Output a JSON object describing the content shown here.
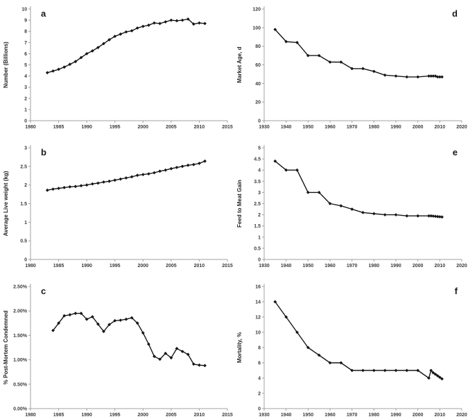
{
  "figure": {
    "background": "#ffffff",
    "series_color": "#161616",
    "axis_color": "#a0a0a0",
    "tick_text_color": "#3c3c3c"
  },
  "chart_data": [
    {
      "type": "line",
      "panel_label": "a",
      "panel_label_side": "left",
      "title": "",
      "xlabel": "",
      "ylabel": "Number (Billions)",
      "legend": null,
      "grid": false,
      "xlim": [
        1980,
        2015
      ],
      "ylim": [
        0,
        10
      ],
      "xticks": [
        1980,
        1985,
        1990,
        1995,
        2000,
        2005,
        2010,
        2015
      ],
      "yticks": [
        0,
        1,
        2,
        3,
        4,
        5,
        6,
        7,
        8,
        9,
        10
      ],
      "ytick_labels": [
        "0",
        "1",
        "2",
        "3",
        "4",
        "5",
        "6",
        "7",
        "8",
        "9",
        "10"
      ],
      "x": [
        1983,
        1984,
        1985,
        1986,
        1987,
        1988,
        1989,
        1990,
        1991,
        1992,
        1993,
        1994,
        1995,
        1996,
        1997,
        1998,
        1999,
        2000,
        2001,
        2002,
        2003,
        2004,
        2005,
        2006,
        2007,
        2008,
        2009,
        2010,
        2011
      ],
      "y": [
        4.3,
        4.45,
        4.6,
        4.8,
        5.05,
        5.3,
        5.65,
        6.0,
        6.25,
        6.55,
        6.9,
        7.25,
        7.55,
        7.75,
        7.95,
        8.05,
        8.3,
        8.45,
        8.55,
        8.75,
        8.7,
        8.85,
        9.0,
        8.95,
        9.0,
        9.1,
        8.65,
        8.75,
        8.7
      ]
    },
    {
      "type": "line",
      "panel_label": "d",
      "panel_label_side": "right",
      "title": "",
      "xlabel": "",
      "ylabel": "Market Age, d",
      "legend": null,
      "grid": false,
      "xlim": [
        1930,
        2020
      ],
      "ylim": [
        0,
        120
      ],
      "xticks": [
        1930,
        1940,
        1950,
        1960,
        1970,
        1980,
        1990,
        2000,
        2010,
        2020
      ],
      "yticks": [
        0,
        20,
        40,
        60,
        80,
        100,
        120
      ],
      "ytick_labels": [
        "0",
        "20",
        "40",
        "60",
        "80",
        "100",
        "120"
      ],
      "x": [
        1935,
        1940,
        1945,
        1950,
        1955,
        1960,
        1965,
        1970,
        1975,
        1980,
        1985,
        1990,
        1995,
        2000,
        2005,
        2006,
        2007,
        2008,
        2009,
        2010,
        2011
      ],
      "y": [
        98,
        85,
        84,
        70,
        70,
        63,
        63,
        56,
        56,
        53,
        49,
        48,
        47,
        47,
        48,
        48,
        48,
        48,
        47,
        47,
        47
      ]
    },
    {
      "type": "line",
      "panel_label": "b",
      "panel_label_side": "left",
      "title": "",
      "xlabel": "",
      "ylabel": "Average Live weight (kg)",
      "legend": null,
      "grid": false,
      "xlim": [
        1980,
        2015
      ],
      "ylim": [
        0,
        3
      ],
      "xticks": [
        1980,
        1985,
        1990,
        1995,
        2000,
        2005,
        2010,
        2015
      ],
      "yticks": [
        0,
        0.5,
        1,
        1.5,
        2,
        2.5,
        3
      ],
      "ytick_labels": [
        "0",
        "0.5",
        "1",
        "1.5",
        "2",
        "2.5",
        "3"
      ],
      "x": [
        1983,
        1984,
        1985,
        1986,
        1987,
        1988,
        1989,
        1990,
        1991,
        1992,
        1993,
        1994,
        1995,
        1996,
        1997,
        1998,
        1999,
        2000,
        2001,
        2002,
        2003,
        2004,
        2005,
        2006,
        2007,
        2008,
        2009,
        2010,
        2011
      ],
      "y": [
        1.86,
        1.89,
        1.91,
        1.93,
        1.95,
        1.96,
        1.98,
        2.0,
        2.03,
        2.05,
        2.08,
        2.1,
        2.13,
        2.16,
        2.19,
        2.22,
        2.26,
        2.28,
        2.3,
        2.33,
        2.37,
        2.4,
        2.44,
        2.47,
        2.5,
        2.53,
        2.55,
        2.58,
        2.64
      ]
    },
    {
      "type": "line",
      "panel_label": "e",
      "panel_label_side": "right",
      "title": "",
      "xlabel": "",
      "ylabel": "Feed to Meat Gain",
      "legend": null,
      "grid": false,
      "xlim": [
        1930,
        2020
      ],
      "ylim": [
        0,
        5
      ],
      "xticks": [
        1930,
        1940,
        1950,
        1960,
        1970,
        1980,
        1990,
        2000,
        2010,
        2020
      ],
      "yticks": [
        0,
        0.5,
        1,
        1.5,
        2,
        2.5,
        3,
        3.5,
        4,
        4.5,
        5
      ],
      "ytick_labels": [
        "0",
        "0.5",
        "1",
        "1.5",
        "2",
        "2.5",
        "3",
        "3.5",
        "4",
        "4.5",
        "5"
      ],
      "x": [
        1935,
        1940,
        1945,
        1950,
        1955,
        1960,
        1965,
        1970,
        1975,
        1980,
        1985,
        1990,
        1995,
        2000,
        2005,
        2006,
        2007,
        2008,
        2009,
        2010,
        2011
      ],
      "y": [
        4.4,
        4.0,
        4.0,
        3.0,
        3.0,
        2.5,
        2.4,
        2.25,
        2.1,
        2.05,
        2.0,
        2.0,
        1.95,
        1.95,
        1.95,
        1.95,
        1.94,
        1.93,
        1.92,
        1.91,
        1.9
      ]
    },
    {
      "type": "line",
      "panel_label": "c",
      "panel_label_side": "left",
      "title": "",
      "xlabel": "",
      "ylabel": "% Post-Mortem Condemned",
      "legend": null,
      "grid": false,
      "xlim": [
        1980,
        2015
      ],
      "ylim": [
        0,
        2.5
      ],
      "xticks": [
        1980,
        1985,
        1990,
        1995,
        2000,
        2005,
        2010,
        2015
      ],
      "yticks": [
        0,
        0.5,
        1,
        1.5,
        2,
        2.5
      ],
      "ytick_labels": [
        "0.00%",
        "0.50%",
        "1.00%",
        "1.50%",
        "2.00%",
        "2.50%"
      ],
      "x": [
        1984,
        1985,
        1986,
        1987,
        1988,
        1989,
        1990,
        1991,
        1992,
        1993,
        1994,
        1995,
        1996,
        1997,
        1998,
        1999,
        2000,
        2001,
        2002,
        2003,
        2004,
        2005,
        2006,
        2007,
        2008,
        2009,
        2010,
        2011
      ],
      "y": [
        1.6,
        1.75,
        1.9,
        1.92,
        1.95,
        1.95,
        1.83,
        1.88,
        1.73,
        1.58,
        1.72,
        1.8,
        1.81,
        1.83,
        1.86,
        1.75,
        1.55,
        1.32,
        1.07,
        1.01,
        1.13,
        1.04,
        1.23,
        1.17,
        1.11,
        0.91,
        0.89,
        0.88
      ]
    },
    {
      "type": "line",
      "panel_label": "f",
      "panel_label_side": "right",
      "title": "",
      "xlabel": "",
      "ylabel": "Mortality, %",
      "legend": null,
      "grid": false,
      "xlim": [
        1930,
        2020
      ],
      "ylim": [
        0,
        16
      ],
      "xticks": [
        1930,
        1940,
        1950,
        1960,
        1970,
        1980,
        1990,
        2000,
        2010,
        2020
      ],
      "yticks": [
        0,
        2,
        4,
        6,
        8,
        10,
        12,
        14,
        16
      ],
      "ytick_labels": [
        "0",
        "2",
        "4",
        "6",
        "8",
        "10",
        "12",
        "14",
        "16"
      ],
      "x": [
        1935,
        1940,
        1945,
        1950,
        1955,
        1960,
        1965,
        1970,
        1975,
        1980,
        1985,
        1990,
        1995,
        2000,
        2005,
        2006,
        2007,
        2008,
        2009,
        2010,
        2011
      ],
      "y": [
        14,
        12,
        10,
        8,
        7,
        6,
        6,
        5,
        5,
        5,
        5,
        5,
        5,
        5,
        4,
        5,
        4.7,
        4.5,
        4.3,
        4.1,
        3.9
      ]
    }
  ]
}
